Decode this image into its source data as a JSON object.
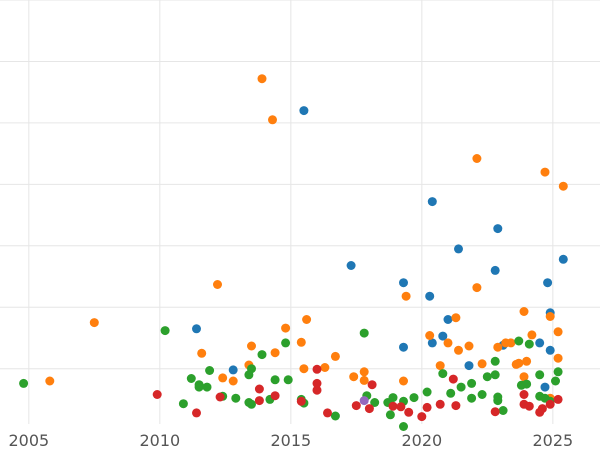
{
  "chart_data": {
    "type": "scatter",
    "title": "",
    "xlabel": "",
    "ylabel": "",
    "xlim": [
      2003.9,
      2026.8
    ],
    "ylim": [
      -0.9,
      6.0
    ],
    "x_ticks": [
      2005,
      2010,
      2015,
      2020,
      2025
    ],
    "x_tick_labels": [
      "2005",
      "2010",
      "2015",
      "2020",
      "2025"
    ],
    "y_gridlines": [
      0,
      1,
      2,
      3,
      4,
      5,
      6
    ],
    "y_tick_labels_visible": false,
    "grid": true,
    "legend": "none",
    "series": [
      {
        "color": "#1f77b4",
        "points": [
          [
            2011.4,
            0.65
          ],
          [
            2012.8,
            -0.02
          ],
          [
            2015.5,
            4.2
          ],
          [
            2017.3,
            1.68
          ],
          [
            2019.3,
            1.4
          ],
          [
            2019.3,
            0.35
          ],
          [
            2020.3,
            1.18
          ],
          [
            2020.4,
            2.72
          ],
          [
            2020.4,
            0.42
          ],
          [
            2020.8,
            0.53
          ],
          [
            2021.0,
            0.8
          ],
          [
            2021.4,
            1.95
          ],
          [
            2021.8,
            0.05
          ],
          [
            2022.8,
            1.6
          ],
          [
            2022.9,
            2.28
          ],
          [
            2023.1,
            0.38
          ],
          [
            2024.5,
            0.42
          ],
          [
            2024.7,
            -0.3
          ],
          [
            2024.8,
            1.4
          ],
          [
            2024.9,
            0.3
          ],
          [
            2024.9,
            0.91
          ],
          [
            2025.4,
            1.78
          ]
        ]
      },
      {
        "color": "#ff7f0e",
        "points": [
          [
            2005.8,
            -0.2
          ],
          [
            2007.5,
            0.75
          ],
          [
            2011.6,
            0.25
          ],
          [
            2012.2,
            1.37
          ],
          [
            2012.4,
            -0.15
          ],
          [
            2012.8,
            -0.2
          ],
          [
            2013.4,
            0.06
          ],
          [
            2013.5,
            0.37
          ],
          [
            2013.9,
            4.72
          ],
          [
            2014.3,
            4.05
          ],
          [
            2014.4,
            0.26
          ],
          [
            2014.8,
            0.66
          ],
          [
            2015.4,
            0.43
          ],
          [
            2015.5,
            0.0
          ],
          [
            2015.6,
            0.8
          ],
          [
            2016.3,
            0.02
          ],
          [
            2016.7,
            0.2
          ],
          [
            2017.4,
            -0.13
          ],
          [
            2017.8,
            -0.05
          ],
          [
            2017.8,
            -0.19
          ],
          [
            2019.3,
            -0.2
          ],
          [
            2019.4,
            1.18
          ],
          [
            2020.3,
            0.54
          ],
          [
            2020.7,
            0.05
          ],
          [
            2021.0,
            0.42
          ],
          [
            2021.3,
            0.83
          ],
          [
            2021.4,
            0.3
          ],
          [
            2021.8,
            0.37
          ],
          [
            2022.1,
            1.32
          ],
          [
            2022.1,
            3.42
          ],
          [
            2022.3,
            0.08
          ],
          [
            2022.9,
            0.35
          ],
          [
            2023.2,
            0.42
          ],
          [
            2023.4,
            0.42
          ],
          [
            2023.6,
            0.07
          ],
          [
            2023.7,
            0.09
          ],
          [
            2023.9,
            0.93
          ],
          [
            2023.9,
            -0.13
          ],
          [
            2024.0,
            0.12
          ],
          [
            2024.2,
            0.55
          ],
          [
            2024.7,
            3.2
          ],
          [
            2024.9,
            0.85
          ],
          [
            2024.9,
            -0.48
          ],
          [
            2025.2,
            0.17
          ],
          [
            2025.2,
            0.6
          ],
          [
            2025.4,
            2.97
          ]
        ]
      },
      {
        "color": "#2ca02c",
        "points": [
          [
            2004.8,
            -0.24
          ],
          [
            2010.2,
            0.62
          ],
          [
            2010.9,
            -0.57
          ],
          [
            2011.2,
            -0.16
          ],
          [
            2011.5,
            -0.26
          ],
          [
            2011.5,
            -0.3
          ],
          [
            2011.8,
            -0.3
          ],
          [
            2011.9,
            -0.03
          ],
          [
            2012.4,
            -0.45
          ],
          [
            2012.9,
            -0.48
          ],
          [
            2013.4,
            -0.55
          ],
          [
            2013.4,
            -0.1
          ],
          [
            2013.5,
            -0.58
          ],
          [
            2013.5,
            0.0
          ],
          [
            2013.9,
            0.23
          ],
          [
            2014.2,
            -0.5
          ],
          [
            2014.4,
            -0.18
          ],
          [
            2014.8,
            0.42
          ],
          [
            2014.9,
            -0.18
          ],
          [
            2015.4,
            -0.5
          ],
          [
            2015.5,
            -0.56
          ],
          [
            2016.7,
            -0.77
          ],
          [
            2017.8,
            0.58
          ],
          [
            2017.9,
            -0.44
          ],
          [
            2018.2,
            -0.55
          ],
          [
            2018.7,
            -0.55
          ],
          [
            2018.8,
            -0.75
          ],
          [
            2018.9,
            -0.47
          ],
          [
            2019.3,
            -0.53
          ],
          [
            2019.3,
            -0.94
          ],
          [
            2019.7,
            -0.47
          ],
          [
            2020.2,
            -0.38
          ],
          [
            2020.8,
            -0.08
          ],
          [
            2021.1,
            -0.4
          ],
          [
            2021.5,
            -0.3
          ],
          [
            2021.9,
            -0.24
          ],
          [
            2021.9,
            -0.48
          ],
          [
            2022.3,
            -0.42
          ],
          [
            2022.5,
            -0.13
          ],
          [
            2022.8,
            -0.1
          ],
          [
            2022.8,
            0.12
          ],
          [
            2022.9,
            -0.46
          ],
          [
            2022.9,
            -0.52
          ],
          [
            2023.1,
            -0.68
          ],
          [
            2023.7,
            0.45
          ],
          [
            2023.8,
            -0.27
          ],
          [
            2024.0,
            -0.25
          ],
          [
            2024.1,
            0.4
          ],
          [
            2024.5,
            -0.45
          ],
          [
            2024.5,
            -0.1
          ],
          [
            2024.7,
            -0.48
          ],
          [
            2024.9,
            -0.53
          ],
          [
            2025.1,
            -0.2
          ],
          [
            2025.2,
            -0.05
          ]
        ]
      },
      {
        "color": "#d62728",
        "points": [
          [
            2009.9,
            -0.42
          ],
          [
            2011.4,
            -0.72
          ],
          [
            2012.3,
            -0.46
          ],
          [
            2013.8,
            -0.52
          ],
          [
            2013.8,
            -0.33
          ],
          [
            2014.4,
            -0.44
          ],
          [
            2015.4,
            -0.53
          ],
          [
            2016.0,
            -0.35
          ],
          [
            2016.0,
            -0.24
          ],
          [
            2016.0,
            -0.01
          ],
          [
            2016.4,
            -0.72
          ],
          [
            2017.5,
            -0.6
          ],
          [
            2018.0,
            -0.65
          ],
          [
            2018.1,
            -0.26
          ],
          [
            2018.9,
            -0.61
          ],
          [
            2019.2,
            -0.62
          ],
          [
            2019.5,
            -0.71
          ],
          [
            2020.0,
            -0.78
          ],
          [
            2020.2,
            -0.63
          ],
          [
            2020.7,
            -0.58
          ],
          [
            2021.3,
            -0.6
          ],
          [
            2021.2,
            -0.17
          ],
          [
            2022.8,
            -0.7
          ],
          [
            2023.9,
            -0.58
          ],
          [
            2023.9,
            -0.42
          ],
          [
            2024.1,
            -0.61
          ],
          [
            2024.5,
            -0.71
          ],
          [
            2024.6,
            -0.65
          ],
          [
            2024.9,
            -0.58
          ],
          [
            2025.2,
            -0.5
          ]
        ]
      },
      {
        "color": "#9467bd",
        "points": [
          [
            2017.8,
            -0.52
          ]
        ]
      }
    ]
  }
}
